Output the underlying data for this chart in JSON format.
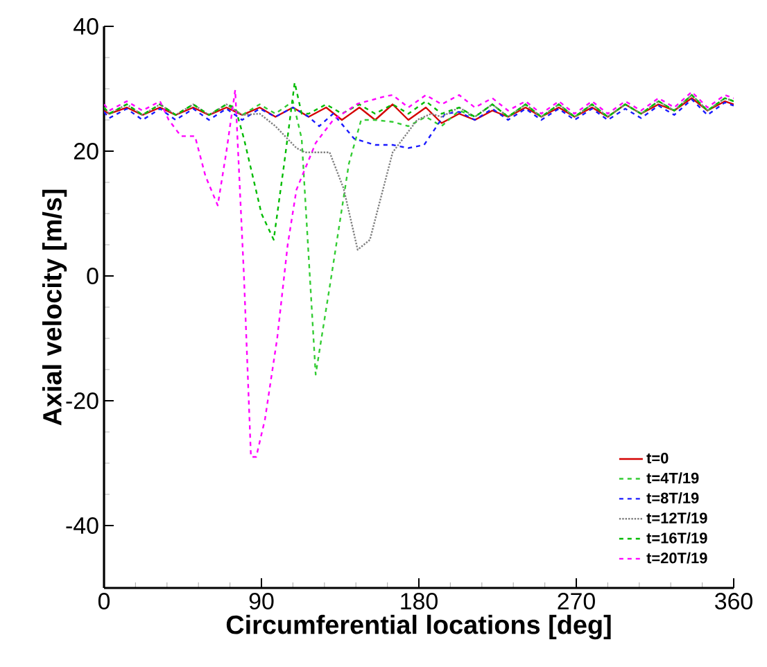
{
  "chart_data": {
    "type": "line",
    "xlabel": "Circumferential locations [deg]",
    "ylabel": "Axial velocity [m/s]",
    "xlim": [
      0,
      360
    ],
    "ylim": [
      -50,
      40
    ],
    "xticks": [
      0,
      90,
      180,
      270,
      360
    ],
    "yticks": [
      -40,
      -20,
      0,
      20,
      40
    ],
    "grid": false,
    "legend": "bottom right",
    "marker": "none",
    "series": [
      {
        "name": "t=0",
        "color": "#d40000",
        "line_style": "solid",
        "x": [
          0,
          3,
          13,
          22,
          32,
          41,
          51,
          60,
          70,
          79,
          89,
          98,
          108,
          117,
          127,
          136,
          146,
          155,
          165,
          174,
          184,
          193,
          203,
          212,
          222,
          231,
          241,
          250,
          260,
          269,
          279,
          288,
          298,
          307,
          317,
          326,
          336,
          345,
          355,
          360
        ],
        "values": [
          26.5,
          26,
          27,
          25.8,
          27,
          25.8,
          27,
          25.8,
          27,
          25.8,
          27,
          25.5,
          27,
          25.5,
          27,
          25,
          27,
          25,
          27.5,
          25,
          27,
          24.5,
          26,
          25,
          26.5,
          25.5,
          27,
          25.5,
          27,
          25.5,
          27,
          25.5,
          27.5,
          26,
          27.5,
          26.5,
          28.5,
          26.5,
          28,
          27.5
        ]
      },
      {
        "name": "t=4T/19",
        "color": "#33cc33",
        "line_style": "dashed",
        "x": [
          0,
          3,
          13,
          22,
          32,
          41,
          51,
          60,
          70,
          79,
          89,
          98,
          108,
          113,
          121,
          130,
          140,
          147,
          155,
          165,
          174,
          184,
          193,
          203,
          212,
          222,
          231,
          241,
          250,
          260,
          269,
          279,
          288,
          298,
          307,
          317,
          326,
          336,
          345,
          355,
          360
        ],
        "values": [
          27,
          26,
          27.5,
          25.8,
          27.5,
          25.8,
          27.5,
          25.8,
          27.5,
          25.8,
          27.5,
          26,
          28,
          22,
          -15.8,
          0,
          18,
          25,
          25,
          24.7,
          24,
          25.5,
          24,
          26.5,
          25.5,
          27.5,
          25.5,
          27.5,
          25.5,
          27.5,
          25.5,
          27.5,
          25.5,
          27.5,
          26,
          28,
          26.5,
          29,
          26.5,
          28.5,
          28
        ]
      },
      {
        "name": "t=8T/19",
        "color": "#1a1aff",
        "line_style": "dashed",
        "x": [
          0,
          3,
          13,
          22,
          32,
          41,
          51,
          60,
          70,
          79,
          89,
          98,
          108,
          117,
          123,
          131,
          143,
          155,
          165,
          174,
          183,
          195,
          203,
          212,
          222,
          231,
          241,
          250,
          260,
          269,
          279,
          288,
          298,
          307,
          317,
          326,
          336,
          345,
          355,
          360
        ],
        "values": [
          26.3,
          25.3,
          26.8,
          25,
          26.8,
          25,
          26.8,
          25,
          26.8,
          25,
          26.8,
          25.5,
          27,
          25.5,
          24,
          26,
          22,
          21,
          21,
          20.5,
          21,
          26,
          26.3,
          25,
          26.8,
          25,
          26.8,
          25,
          26.8,
          25,
          26.8,
          25,
          26.8,
          25.3,
          27.3,
          25.8,
          28.3,
          25.8,
          27.8,
          27.3
        ]
      },
      {
        "name": "t=12T/19",
        "color": "#808080",
        "line_style": "dotted",
        "x": [
          0,
          3,
          13,
          22,
          32,
          41,
          51,
          60,
          70,
          79,
          89,
          98,
          110,
          115,
          129,
          137,
          145,
          152,
          165,
          179,
          187,
          193,
          203,
          212,
          222,
          231,
          241,
          250,
          260,
          269,
          279,
          288,
          298,
          307,
          317,
          326,
          336,
          345,
          355,
          360
        ],
        "values": [
          27,
          26,
          27.5,
          25.8,
          27.5,
          25.8,
          27.5,
          25.8,
          27.5,
          25.8,
          26,
          24,
          20.5,
          19.8,
          19.8,
          14,
          4.2,
          5.8,
          19.8,
          25,
          26,
          25.5,
          27,
          25.5,
          27.5,
          25.5,
          27.5,
          25.5,
          27.5,
          25.5,
          27.5,
          25.5,
          27.5,
          26,
          28,
          26.5,
          29,
          26.5,
          28.5,
          28
        ]
      },
      {
        "name": "t=16T/19",
        "color": "#00bb00",
        "line_style": "dashed",
        "x": [
          0,
          3,
          13,
          22,
          32,
          41,
          51,
          60,
          70,
          75,
          80,
          90,
          97,
          103,
          109,
          113,
          117,
          127,
          136,
          146,
          155,
          165,
          174,
          184,
          193,
          203,
          212,
          222,
          231,
          241,
          250,
          260,
          269,
          279,
          288,
          298,
          307,
          317,
          326,
          336,
          345,
          355,
          360
        ],
        "values": [
          27,
          26,
          27.5,
          25.8,
          27.5,
          25.8,
          27.5,
          25.8,
          27.5,
          27,
          22,
          10,
          5.8,
          18,
          31,
          26,
          26,
          27.5,
          26,
          27.5,
          26,
          27.5,
          26,
          28,
          26,
          27,
          25.5,
          27.5,
          25.5,
          27.5,
          25.5,
          27.5,
          25.5,
          27.5,
          25.5,
          27.5,
          26,
          28,
          26.5,
          29,
          26.5,
          28.5,
          28
        ]
      },
      {
        "name": "t=20T/19",
        "color": "#ff00ff",
        "line_style": "dashed",
        "x": [
          0,
          3,
          13,
          22,
          32,
          37,
          44,
          52,
          58,
          65,
          70,
          75,
          80,
          84,
          87,
          92,
          99,
          105,
          110,
          121,
          131,
          145,
          161,
          165,
          174,
          184,
          193,
          203,
          212,
          222,
          231,
          241,
          250,
          260,
          269,
          279,
          288,
          298,
          307,
          317,
          326,
          336,
          345,
          355,
          360
        ],
        "values": [
          27.5,
          26.5,
          28,
          26.5,
          28,
          25,
          22.4,
          22.4,
          16,
          11.3,
          20,
          29.8,
          0,
          -29,
          -29,
          -23,
          -10,
          5,
          13.8,
          21.3,
          25,
          27.6,
          28.8,
          29,
          27,
          29,
          27.5,
          29,
          27,
          28.5,
          26.5,
          28,
          26,
          28,
          26,
          28,
          26,
          28,
          26.5,
          28.5,
          27,
          29.5,
          27,
          29,
          28.5
        ]
      }
    ]
  }
}
